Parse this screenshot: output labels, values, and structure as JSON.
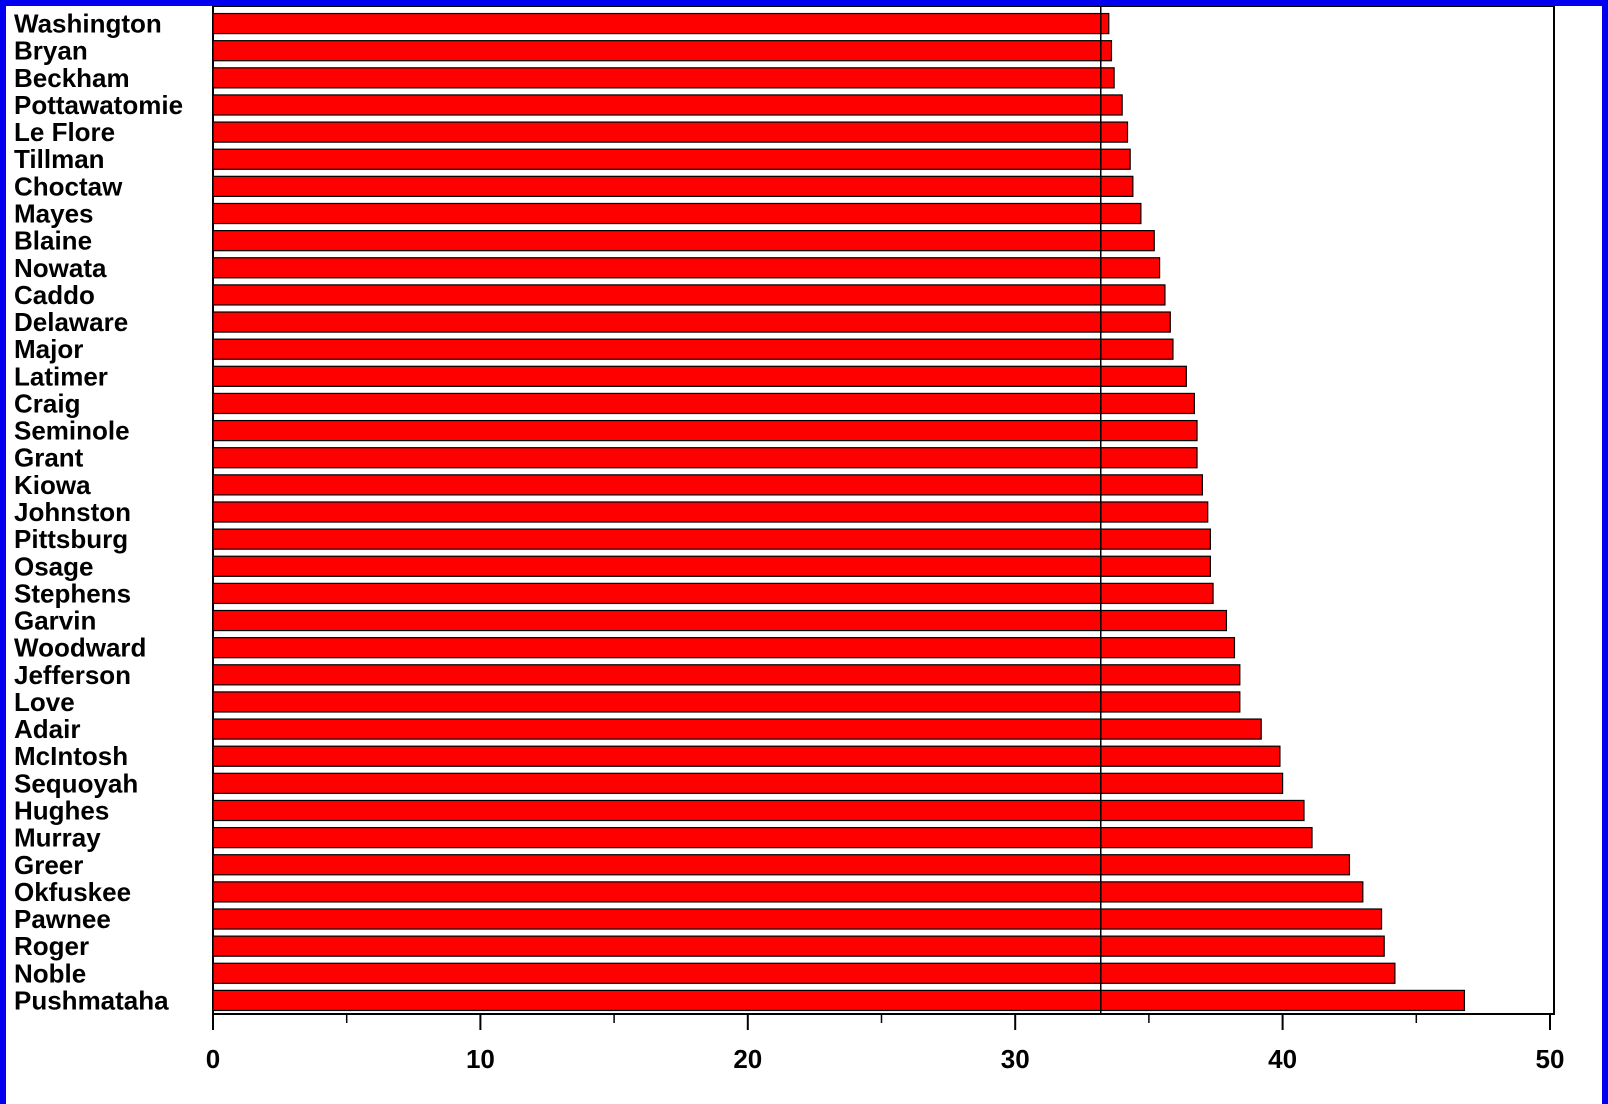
{
  "chart_data": {
    "type": "bar",
    "orientation": "horizontal",
    "categories": [
      "Washington",
      "Bryan",
      "Beckham",
      "Pottawatomie",
      "Le Flore",
      "Tillman",
      "Choctaw",
      "Mayes",
      "Blaine",
      "Nowata",
      "Caddo",
      "Delaware",
      "Major",
      "Latimer",
      "Craig",
      "Seminole",
      "Grant",
      "Kiowa",
      "Johnston",
      "Pittsburg",
      "Osage",
      "Stephens",
      "Garvin",
      "Woodward",
      "Jefferson",
      "Love",
      "Adair",
      "McIntosh",
      "Sequoyah",
      "Hughes",
      "Murray",
      "Greer",
      "Okfuskee",
      "Pawnee",
      "Roger",
      "Noble",
      "Pushmataha"
    ],
    "values": [
      33.5,
      33.6,
      33.7,
      34.0,
      34.2,
      34.3,
      34.4,
      34.7,
      35.2,
      35.4,
      35.6,
      35.8,
      35.9,
      36.4,
      36.7,
      36.8,
      36.8,
      37.0,
      37.2,
      37.3,
      37.3,
      37.4,
      37.9,
      38.2,
      38.4,
      38.4,
      39.2,
      39.9,
      40.0,
      40.8,
      41.1,
      42.5,
      43.0,
      43.7,
      43.8,
      44.2,
      46.8
    ],
    "reference_line": 33.2,
    "xlim": [
      0,
      50
    ],
    "x_ticks": [
      "0",
      "10",
      "20",
      "30",
      "40",
      "50"
    ],
    "bar_color": "#ff0000",
    "grid": false,
    "title": "",
    "xlabel": "",
    "ylabel": ""
  },
  "colors": {
    "frame": "#0000ee",
    "plot_background": "#ffffff"
  }
}
